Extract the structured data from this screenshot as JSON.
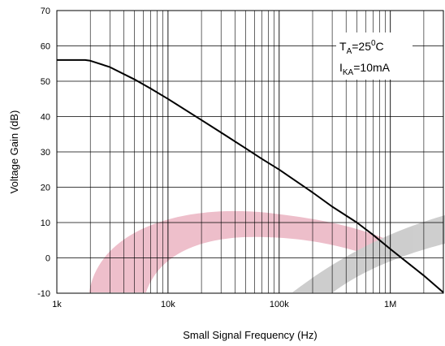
{
  "chart_data": {
    "type": "line",
    "title": "",
    "xlabel": "Small Signal Frequency (Hz)",
    "ylabel": "Voltage Gain (dB)",
    "xscale": "log",
    "xlim": [
      1000,
      3000000
    ],
    "ylim": [
      -10,
      70
    ],
    "x_tick_labels": [
      "1k",
      "10k",
      "100k",
      "1M"
    ],
    "x_tick_values": [
      1000,
      10000,
      100000,
      1000000
    ],
    "y_ticks": [
      -10,
      0,
      10,
      20,
      30,
      40,
      50,
      60,
      70
    ],
    "grid": true,
    "annotations": {
      "ta_main": "T",
      "ta_sub": "A",
      "ta_rest": "=25",
      "ta_sup": "0",
      "ta_unit": "C",
      "ika_main": "I",
      "ika_sub": "KA",
      "ika_rest": "=10mA",
      "placement": "top-right"
    },
    "series": [
      {
        "color": "#000000",
        "x": [
          1000,
          1500,
          1800,
          2000,
          3000,
          5000,
          7000,
          10000,
          20000,
          30000,
          50000,
          70000,
          100000,
          200000,
          300000,
          500000,
          700000,
          1000000,
          2000000,
          3000000
        ],
        "y": [
          56,
          56,
          56,
          55.8,
          54,
          50.5,
          47.9,
          45,
          39,
          35.5,
          31,
          28,
          25,
          18.5,
          14.5,
          10,
          6.5,
          2.5,
          -5,
          -9.8
        ]
      }
    ]
  }
}
